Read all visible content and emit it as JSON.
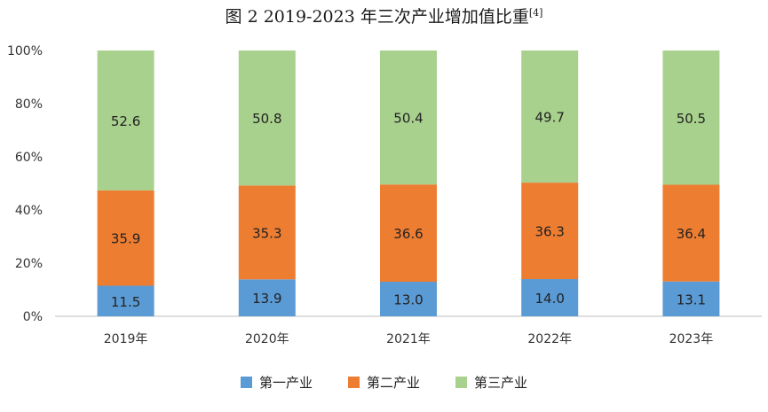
{
  "chart_data": {
    "type": "bar",
    "stacked": true,
    "title": "图 2 2019-2023 年三次产业增加值比重",
    "title_ref": "[4]",
    "categories": [
      "2019年",
      "2020年",
      "2021年",
      "2022年",
      "2023年"
    ],
    "series": [
      {
        "name": "第一产业",
        "values": [
          11.5,
          13.9,
          13.0,
          14.0,
          13.1
        ],
        "color": "#5B9BD5"
      },
      {
        "name": "第二产业",
        "values": [
          35.9,
          35.3,
          36.6,
          36.3,
          36.4
        ],
        "color": "#ED7D31"
      },
      {
        "name": "第三产业",
        "values": [
          52.6,
          50.8,
          50.4,
          49.7,
          50.5
        ],
        "color": "#A9D18E"
      }
    ],
    "ylim": [
      0,
      100
    ],
    "yticks": [
      "0%",
      "20%",
      "40%",
      "60%",
      "80%",
      "100%"
    ],
    "grid": false,
    "legend_position": "bottom"
  }
}
